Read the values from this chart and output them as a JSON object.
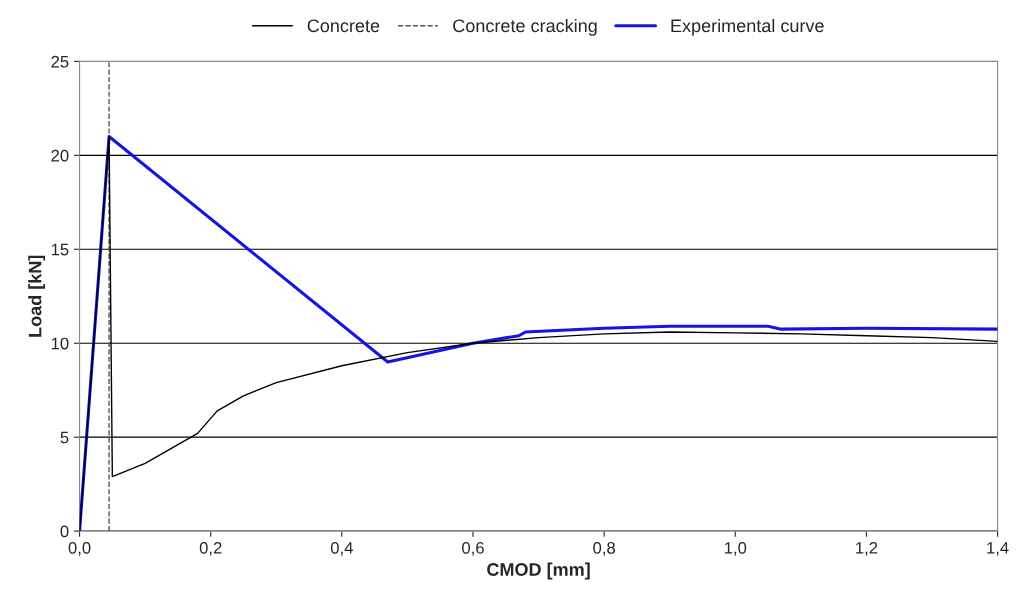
{
  "chart_data": {
    "type": "line",
    "xlabel": "CMOD [mm]",
    "ylabel": "Load [kN]",
    "xlim": [
      0,
      1.4
    ],
    "ylim": [
      0,
      25
    ],
    "xticks": [
      {
        "value": 0,
        "label": "0,0"
      },
      {
        "value": 0.2,
        "label": "0,2"
      },
      {
        "value": 0.4,
        "label": "0,4"
      },
      {
        "value": 0.6,
        "label": "0,6"
      },
      {
        "value": 0.8,
        "label": "0,8"
      },
      {
        "value": 1.0,
        "label": "1,0"
      },
      {
        "value": 1.2,
        "label": "1,2"
      },
      {
        "value": 1.4,
        "label": "1,4"
      }
    ],
    "yticks": [
      0,
      5,
      10,
      15,
      20,
      25
    ],
    "grid": "y",
    "legend": "top",
    "series": [
      {
        "name": "Concrete",
        "color": "#000000",
        "line_style": "solid",
        "x": [
          0,
          0.045,
          0.05,
          0.1,
          0.15,
          0.18,
          0.2,
          0.21,
          0.25,
          0.3,
          0.4,
          0.5,
          0.6,
          0.7,
          0.8,
          0.9,
          1.0,
          1.1,
          1.2,
          1.3,
          1.4
        ],
        "values": [
          0,
          21,
          2.9,
          3.6,
          4.6,
          5.2,
          6.0,
          6.4,
          7.2,
          7.9,
          8.8,
          9.5,
          10.0,
          10.3,
          10.5,
          10.6,
          10.55,
          10.5,
          10.4,
          10.3,
          10.1
        ]
      },
      {
        "name": "Concrete cracking",
        "color": "#555555",
        "line_style": "dashed",
        "x": [
          0.045,
          0.045
        ],
        "values": [
          0,
          25
        ]
      },
      {
        "name": "Experimental curve",
        "color": "#1414e6",
        "line_style": "solid",
        "x": [
          0,
          0.045,
          0.47,
          0.6,
          0.67,
          0.68,
          0.8,
          0.9,
          1.0,
          1.05,
          1.07,
          1.2,
          1.4
        ],
        "values": [
          0,
          21,
          9,
          10,
          10.4,
          10.6,
          10.8,
          10.9,
          10.9,
          10.9,
          10.75,
          10.8,
          10.75
        ]
      }
    ]
  }
}
